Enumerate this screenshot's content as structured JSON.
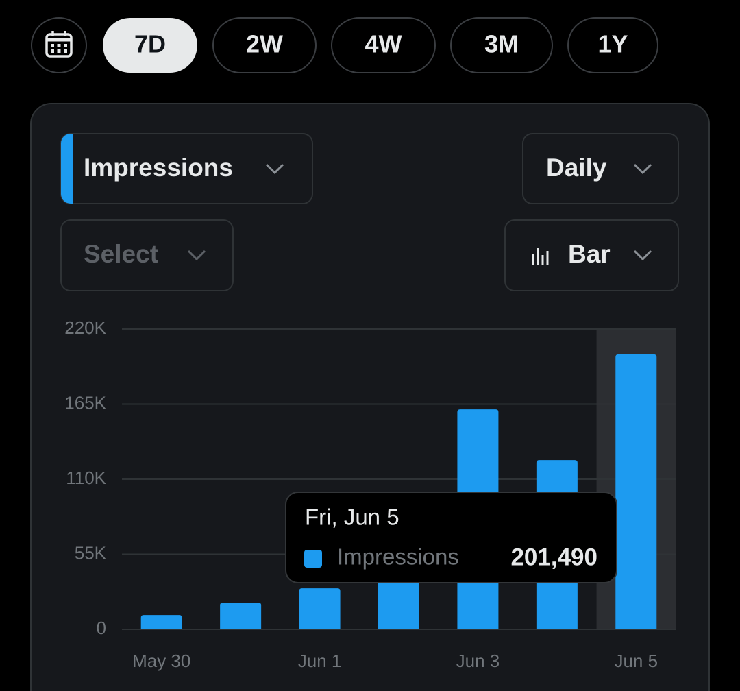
{
  "date_range": {
    "options": [
      "7D",
      "2W",
      "4W",
      "3M",
      "1Y"
    ],
    "selected": 0
  },
  "controls": {
    "metric": "Impressions",
    "interval": "Daily",
    "compare": "Select",
    "chart_type": "Bar"
  },
  "chart_data": {
    "type": "bar",
    "categories": [
      "May 30",
      null,
      "Jun 1",
      null,
      "Jun 3",
      null,
      "Jun 5"
    ],
    "series": [
      {
        "name": "Impressions",
        "color": "#1d9bf0",
        "values": [
          10500,
          19600,
          30100,
          45000,
          161200,
          124000,
          201490
        ],
        "value_labels": [
          null,
          null,
          null,
          null,
          null,
          null,
          "201,490"
        ]
      }
    ],
    "ylim": [
      0,
      220000
    ],
    "yticks": [
      0,
      {
        "value": 55000,
        "label": "55K"
      },
      {
        "value": 110000,
        "label": "110K"
      },
      {
        "value": 165000,
        "label": "165K"
      },
      {
        "value": 220000,
        "label": "220K"
      }
    ],
    "grid": true,
    "tooltip": {
      "title": "Fri, Jun 5",
      "index": 6
    }
  }
}
